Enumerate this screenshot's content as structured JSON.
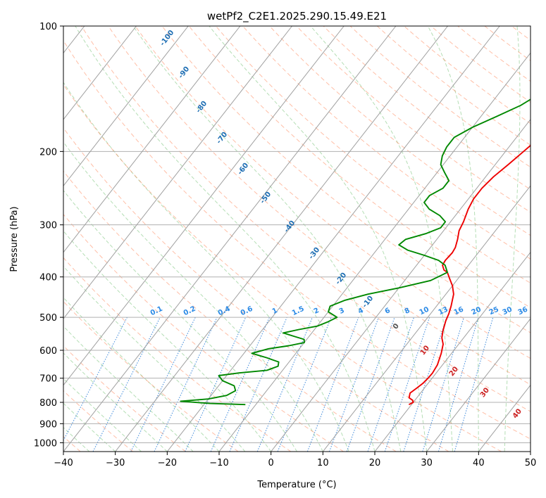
{
  "chart_data": {
    "type": "line",
    "title": "wetPf2_C2E1.2025.290.15.49.E21",
    "xlabel": "Temperature (°C)",
    "ylabel": "Pressure (hPa)",
    "xlim": [
      -40,
      50
    ],
    "ylim": [
      1050,
      100
    ],
    "y_scale": "log",
    "grid": true,
    "x_ticks": [
      -40,
      -30,
      -20,
      -10,
      0,
      10,
      20,
      30,
      40,
      50
    ],
    "y_ticks": [
      100,
      200,
      300,
      400,
      500,
      600,
      700,
      800,
      900,
      1000
    ],
    "dry_adiabat_labels": [
      -100,
      -90,
      -80,
      -70,
      -60,
      -50,
      -40,
      -30,
      -20,
      -10,
      0,
      10,
      20,
      30,
      40
    ],
    "mixing_ratio_labels": [
      "0.1",
      "0.2",
      "0.4",
      "0.6",
      "1",
      "1.5",
      "2",
      "3",
      "4",
      "6",
      "8",
      "10",
      "13",
      "16",
      "20",
      "25",
      "30",
      "36"
    ],
    "series": [
      {
        "color": "#ee0000",
        "points": [
          [
            19.5,
            810
          ],
          [
            20.0,
            800
          ],
          [
            19.5,
            790
          ],
          [
            18.5,
            780
          ],
          [
            18.0,
            760
          ],
          [
            18.5,
            740
          ],
          [
            19.0,
            720
          ],
          [
            19.2,
            700
          ],
          [
            19.3,
            680
          ],
          [
            19.0,
            650
          ],
          [
            18.0,
            610
          ],
          [
            17.0,
            580
          ],
          [
            15.8,
            560
          ],
          [
            15.0,
            540
          ],
          [
            14.0,
            510
          ],
          [
            13.5,
            490
          ],
          [
            12.8,
            470
          ],
          [
            11.5,
            440
          ],
          [
            10.0,
            420
          ],
          [
            8.5,
            405
          ],
          [
            7.0,
            390
          ],
          [
            6.0,
            385
          ],
          [
            5.0,
            375
          ],
          [
            4.8,
            365
          ],
          [
            5.0,
            350
          ],
          [
            4.8,
            340
          ],
          [
            4.0,
            325
          ],
          [
            3.0,
            310
          ],
          [
            2.5,
            295
          ],
          [
            1.5,
            275
          ],
          [
            1.0,
            260
          ],
          [
            1.0,
            245
          ],
          [
            1.5,
            230
          ],
          [
            2.5,
            215
          ],
          [
            3.5,
            200
          ],
          [
            4.5,
            185
          ],
          [
            4.5,
            170
          ],
          [
            4.0,
            160
          ],
          [
            4.5,
            150
          ],
          [
            6.0,
            140
          ],
          [
            7.0,
            130
          ],
          [
            8.0,
            120
          ],
          [
            9.5,
            110
          ],
          [
            11.0,
            105
          ],
          [
            14.0,
            100
          ]
        ]
      },
      {
        "color": "#008800",
        "points": [
          [
            -12.0,
            810
          ],
          [
            -19.0,
            805
          ],
          [
            -25.0,
            795
          ],
          [
            -20.0,
            785
          ],
          [
            -17.0,
            770
          ],
          [
            -16.0,
            750
          ],
          [
            -17.0,
            730
          ],
          [
            -20.0,
            710
          ],
          [
            -21.5,
            690
          ],
          [
            -18.0,
            680
          ],
          [
            -13.0,
            670
          ],
          [
            -11.5,
            655
          ],
          [
            -12.0,
            640
          ],
          [
            -15.0,
            625
          ],
          [
            -18.5,
            610
          ],
          [
            -16.0,
            595
          ],
          [
            -12.5,
            585
          ],
          [
            -10.0,
            575
          ],
          [
            -10.5,
            565
          ],
          [
            -13.0,
            555
          ],
          [
            -15.5,
            545
          ],
          [
            -13.0,
            535
          ],
          [
            -10.0,
            525
          ],
          [
            -8.5,
            512
          ],
          [
            -7.5,
            500
          ],
          [
            -10.0,
            485
          ],
          [
            -10.5,
            470
          ],
          [
            -8.5,
            455
          ],
          [
            -5.0,
            440
          ],
          [
            0.0,
            425
          ],
          [
            5.0,
            408
          ],
          [
            7.0,
            390
          ],
          [
            5.5,
            375
          ],
          [
            3.5,
            365
          ],
          [
            0.0,
            355
          ],
          [
            -4.0,
            345
          ],
          [
            -6.5,
            335
          ],
          [
            -6.0,
            325
          ],
          [
            -3.0,
            315
          ],
          [
            -1.0,
            305
          ],
          [
            -1.0,
            295
          ],
          [
            -3.0,
            285
          ],
          [
            -6.0,
            275
          ],
          [
            -8.0,
            265
          ],
          [
            -8.0,
            255
          ],
          [
            -6.5,
            245
          ],
          [
            -6.5,
            235
          ],
          [
            -8.5,
            225
          ],
          [
            -10.5,
            215
          ],
          [
            -11.5,
            205
          ],
          [
            -12.0,
            195
          ],
          [
            -12.0,
            185
          ],
          [
            -10.0,
            175
          ],
          [
            -7.0,
            165
          ],
          [
            -4.0,
            155
          ],
          [
            -2.0,
            145
          ],
          [
            -0.5,
            135
          ],
          [
            0.3,
            125
          ],
          [
            1.0,
            115
          ],
          [
            1.2,
            105
          ],
          [
            1.2,
            100
          ]
        ]
      }
    ]
  }
}
